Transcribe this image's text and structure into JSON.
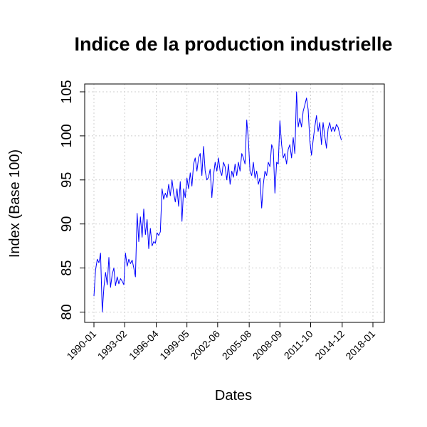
{
  "chart_data": {
    "type": "line",
    "title": "Indice de la production industrielle",
    "xlabel": "Dates",
    "ylabel": "Index (Base 100)",
    "x_range": [
      "1990-01",
      "2018-01"
    ],
    "ylim": [
      79,
      106
    ],
    "yticks": [
      80,
      85,
      90,
      95,
      100,
      105
    ],
    "xticks": [
      "1990-01",
      "1993-02",
      "1996-04",
      "1999-05",
      "2002-06",
      "2005-08",
      "2008-09",
      "2011-10",
      "2014-12",
      "2018-01"
    ],
    "grid": true,
    "line_color": "#0000ff",
    "series": [
      {
        "points": [
          [
            "1990-01",
            81.8
          ],
          [
            "1990-03",
            84.8
          ],
          [
            "1990-05",
            86.0
          ],
          [
            "1990-07",
            85.6
          ],
          [
            "1990-09",
            86.7
          ],
          [
            "1990-11",
            80.0
          ],
          [
            "1991-01",
            82.8
          ],
          [
            "1991-03",
            84.5
          ],
          [
            "1991-05",
            83.1
          ],
          [
            "1991-07",
            86.2
          ],
          [
            "1991-09",
            82.8
          ],
          [
            "1991-11",
            84.3
          ],
          [
            "1992-01",
            85.0
          ],
          [
            "1992-03",
            83.0
          ],
          [
            "1992-05",
            84.0
          ],
          [
            "1992-07",
            83.2
          ],
          [
            "1992-09",
            83.8
          ],
          [
            "1992-11",
            83.5
          ],
          [
            "1993-01",
            83.1
          ],
          [
            "1993-03",
            86.7
          ],
          [
            "1993-05",
            85.2
          ],
          [
            "1993-07",
            86.0
          ],
          [
            "1993-09",
            85.5
          ],
          [
            "1993-11",
            85.9
          ],
          [
            "1994-01",
            85.0
          ],
          [
            "1994-03",
            84.0
          ],
          [
            "1994-05",
            91.2
          ],
          [
            "1994-07",
            88.0
          ],
          [
            "1994-09",
            90.8
          ],
          [
            "1994-11",
            88.5
          ],
          [
            "1995-01",
            91.7
          ],
          [
            "1995-03",
            88.8
          ],
          [
            "1995-05",
            90.5
          ],
          [
            "1995-07",
            87.2
          ],
          [
            "1995-09",
            89.5
          ],
          [
            "1995-11",
            87.5
          ],
          [
            "1996-01",
            88.0
          ],
          [
            "1996-03",
            87.8
          ],
          [
            "1996-05",
            89.0
          ],
          [
            "1996-07",
            88.7
          ],
          [
            "1996-09",
            89.1
          ],
          [
            "1996-11",
            94.0
          ],
          [
            "1997-01",
            92.8
          ],
          [
            "1997-03",
            93.5
          ],
          [
            "1997-05",
            93.0
          ],
          [
            "1997-07",
            94.5
          ],
          [
            "1997-09",
            93.2
          ],
          [
            "1997-11",
            95.0
          ],
          [
            "1998-01",
            93.5
          ],
          [
            "1998-03",
            92.5
          ],
          [
            "1998-05",
            94.0
          ],
          [
            "1998-07",
            92.0
          ],
          [
            "1998-09",
            94.8
          ],
          [
            "1998-11",
            90.3
          ],
          [
            "1999-01",
            94.0
          ],
          [
            "1999-03",
            93.0
          ],
          [
            "1999-05",
            95.2
          ],
          [
            "1999-07",
            94.0
          ],
          [
            "1999-09",
            95.8
          ],
          [
            "1999-11",
            94.3
          ],
          [
            "2000-01",
            96.8
          ],
          [
            "2000-03",
            97.5
          ],
          [
            "2000-05",
            96.0
          ],
          [
            "2000-07",
            97.5
          ],
          [
            "2000-09",
            98.0
          ],
          [
            "2000-11",
            95.5
          ],
          [
            "2001-01",
            98.8
          ],
          [
            "2001-03",
            96.0
          ],
          [
            "2001-05",
            95.0
          ],
          [
            "2001-07",
            95.3
          ],
          [
            "2001-09",
            96.2
          ],
          [
            "2001-11",
            93.0
          ],
          [
            "2002-01",
            95.5
          ],
          [
            "2002-03",
            97.0
          ],
          [
            "2002-05",
            96.0
          ],
          [
            "2002-07",
            97.5
          ],
          [
            "2002-09",
            96.0
          ],
          [
            "2002-11",
            95.5
          ],
          [
            "2003-01",
            97.0
          ],
          [
            "2003-03",
            96.5
          ],
          [
            "2003-05",
            95.0
          ],
          [
            "2003-07",
            96.8
          ],
          [
            "2003-09",
            94.5
          ],
          [
            "2003-11",
            96.0
          ],
          [
            "2004-01",
            95.3
          ],
          [
            "2004-03",
            96.8
          ],
          [
            "2004-05",
            95.5
          ],
          [
            "2004-07",
            97.0
          ],
          [
            "2004-09",
            96.0
          ],
          [
            "2004-11",
            98.0
          ],
          [
            "2005-01",
            97.5
          ],
          [
            "2005-03",
            96.8
          ],
          [
            "2005-05",
            101.8
          ],
          [
            "2005-07",
            99.5
          ],
          [
            "2005-09",
            96.0
          ],
          [
            "2005-11",
            95.5
          ],
          [
            "2006-01",
            97.0
          ],
          [
            "2006-03",
            95.2
          ],
          [
            "2006-05",
            96.0
          ],
          [
            "2006-07",
            94.5
          ],
          [
            "2006-09",
            95.2
          ],
          [
            "2006-11",
            91.8
          ],
          [
            "2007-01",
            94.5
          ],
          [
            "2007-03",
            96.0
          ],
          [
            "2007-05",
            95.5
          ],
          [
            "2007-07",
            97.0
          ],
          [
            "2007-09",
            96.5
          ],
          [
            "2007-11",
            99.0
          ],
          [
            "2008-01",
            98.5
          ],
          [
            "2008-03",
            93.5
          ],
          [
            "2008-05",
            97.0
          ],
          [
            "2008-07",
            96.8
          ],
          [
            "2008-09",
            101.7
          ],
          [
            "2008-11",
            99.0
          ],
          [
            "2009-01",
            97.5
          ],
          [
            "2009-03",
            98.0
          ],
          [
            "2009-05",
            96.8
          ],
          [
            "2009-07",
            98.5
          ],
          [
            "2009-09",
            99.0
          ],
          [
            "2009-11",
            97.5
          ],
          [
            "2010-01",
            99.8
          ],
          [
            "2010-03",
            98.0
          ],
          [
            "2010-05",
            105.0
          ],
          [
            "2010-07",
            101.0
          ],
          [
            "2010-09",
            102.0
          ],
          [
            "2010-11",
            101.0
          ],
          [
            "2011-01",
            102.8
          ],
          [
            "2011-03",
            103.5
          ],
          [
            "2011-05",
            104.3
          ],
          [
            "2011-07",
            103.0
          ],
          [
            "2011-09",
            99.5
          ],
          [
            "2011-11",
            97.8
          ],
          [
            "2012-01",
            99.5
          ],
          [
            "2012-03",
            101.0
          ],
          [
            "2012-05",
            102.3
          ],
          [
            "2012-07",
            100.5
          ],
          [
            "2012-09",
            101.5
          ],
          [
            "2012-11",
            99.0
          ],
          [
            "2013-01",
            101.5
          ],
          [
            "2013-03",
            100.0
          ],
          [
            "2013-05",
            98.6
          ],
          [
            "2013-07",
            100.8
          ],
          [
            "2013-09",
            101.5
          ],
          [
            "2013-11",
            100.5
          ],
          [
            "2014-01",
            101.0
          ],
          [
            "2014-03",
            100.5
          ],
          [
            "2014-05",
            101.3
          ],
          [
            "2014-07",
            101.0
          ],
          [
            "2014-09",
            100.2
          ],
          [
            "2014-11",
            99.5
          ]
        ]
      }
    ]
  }
}
